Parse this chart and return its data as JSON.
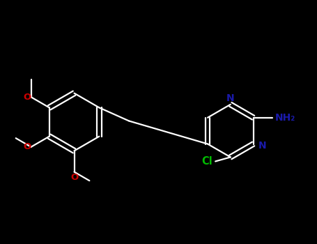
{
  "background_color": "#000000",
  "line_color": "#FFFFFF",
  "label_colors": {
    "N": "#1a1aaa",
    "O": "#cc0000",
    "Cl": "#00bb00",
    "NH2": "#1a1aaa"
  },
  "figsize": [
    4.55,
    3.5
  ],
  "dpi": 100,
  "lw": 1.6,
  "font_size": 10
}
